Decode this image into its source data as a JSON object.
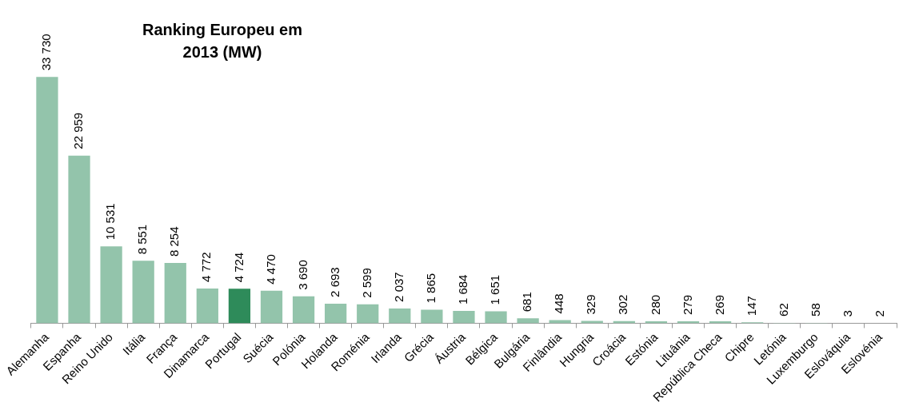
{
  "chart_data": {
    "type": "bar",
    "title": "Ranking Europeu em 2013 (MW)",
    "categories": [
      "Alemanha",
      "Espanha",
      "Reino Unido",
      "Itália",
      "França",
      "Dinamarca",
      "Portugal",
      "Suécia",
      "Polónia",
      "Holanda",
      "Roménia",
      "Irlanda",
      "Grécia",
      "Áustria",
      "Bélgica",
      "Bulgária",
      "Finlândia",
      "Hungria",
      "Croácia",
      "Estónia",
      "Lituânia",
      "República Checa",
      "Chipre",
      "Letónia",
      "Luxemburgo",
      "Eslováquia",
      "Eslovénia"
    ],
    "values": [
      33730,
      22959,
      10531,
      8551,
      8254,
      4772,
      4724,
      4470,
      3690,
      2693,
      2599,
      2037,
      1865,
      1684,
      1651,
      681,
      448,
      329,
      302,
      280,
      279,
      269,
      147,
      62,
      58,
      3,
      2
    ],
    "value_labels": [
      "33 730",
      "22 959",
      "10 531",
      "8 551",
      "8 254",
      "4 772",
      "4 724",
      "4 470",
      "3 690",
      "2 693",
      "2 599",
      "2 037",
      "1 865",
      "1 684",
      "1 651",
      "681",
      "448",
      "329",
      "302",
      "280",
      "279",
      "269",
      "147",
      "62",
      "58",
      "3",
      "2"
    ],
    "colors": [
      "#93c4ab",
      "#93c4ab",
      "#93c4ab",
      "#93c4ab",
      "#93c4ab",
      "#93c4ab",
      "#2e8b5a",
      "#93c4ab",
      "#93c4ab",
      "#93c4ab",
      "#93c4ab",
      "#93c4ab",
      "#93c4ab",
      "#93c4ab",
      "#93c4ab",
      "#93c4ab",
      "#93c4ab",
      "#93c4ab",
      "#93c4ab",
      "#93c4ab",
      "#93c4ab",
      "#93c4ab",
      "#93c4ab",
      "#93c4ab",
      "#93c4ab",
      "#93c4ab",
      "#93c4ab"
    ],
    "grid": false,
    "legend": false
  }
}
